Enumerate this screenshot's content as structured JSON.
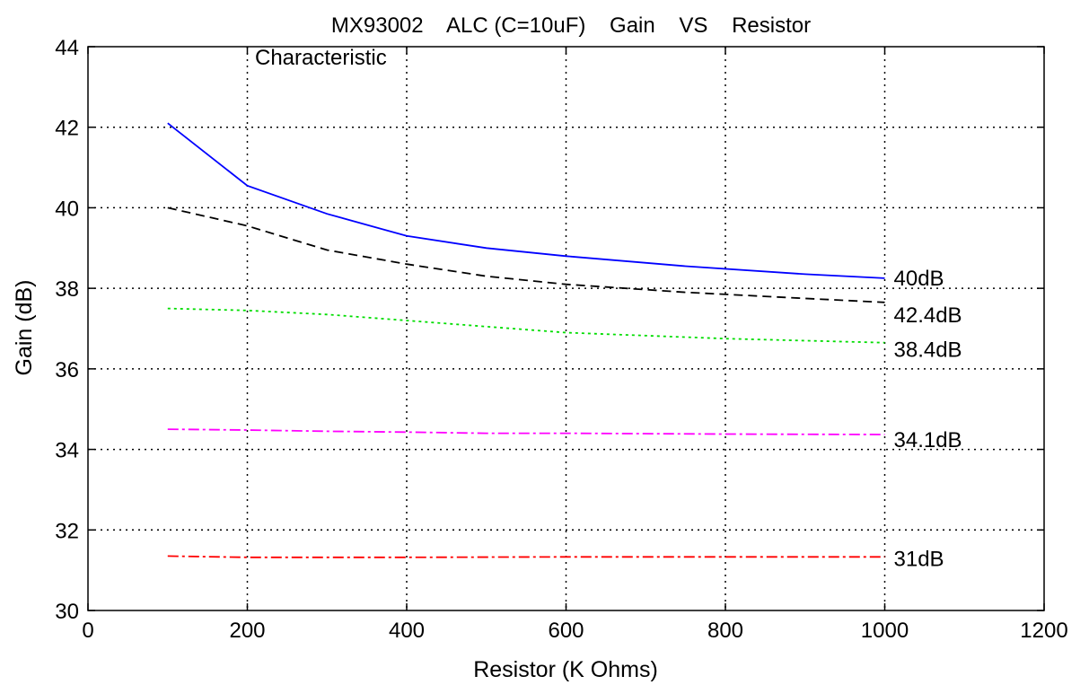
{
  "chart_data": {
    "type": "line",
    "title": "MX93002    ALC (C=10uF)    Gain    VS    Resistor",
    "subtitle": "Characteristic",
    "xlabel": "Resistor (K Ohms)",
    "ylabel": "Gain (dB)",
    "xlim": [
      0,
      1200
    ],
    "ylim": [
      30,
      44
    ],
    "xticks": [
      0,
      200,
      400,
      600,
      800,
      1000,
      1200
    ],
    "yticks": [
      30,
      32,
      34,
      36,
      38,
      40,
      42,
      44
    ],
    "grid": true,
    "series": [
      {
        "name": "40dB",
        "color": "#0000ff",
        "dash": "",
        "x": [
          100,
          200,
          300,
          400,
          500,
          600,
          750,
          900,
          1000
        ],
        "y": [
          42.1,
          40.55,
          39.85,
          39.3,
          39.0,
          38.8,
          38.55,
          38.35,
          38.25
        ]
      },
      {
        "name": "42.4dB",
        "color": "#000000",
        "dash": "10,6",
        "x": [
          100,
          200,
          300,
          400,
          500,
          600,
          750,
          900,
          1000
        ],
        "y": [
          40.0,
          39.55,
          38.95,
          38.6,
          38.3,
          38.1,
          37.9,
          37.75,
          37.65
        ]
      },
      {
        "name": "38.4dB",
        "color": "#00dd00",
        "dash": "3,4",
        "x": [
          100,
          200,
          300,
          400,
          500,
          600,
          800,
          1000
        ],
        "y": [
          37.5,
          37.45,
          37.35,
          37.2,
          37.05,
          36.9,
          36.75,
          36.65
        ]
      },
      {
        "name": "34.1dB",
        "color": "#ff00ff",
        "dash": "12,4,3,4",
        "x": [
          100,
          200,
          300,
          400,
          500,
          600,
          800,
          1000
        ],
        "y": [
          34.5,
          34.48,
          34.45,
          34.43,
          34.4,
          34.4,
          34.38,
          34.37
        ]
      },
      {
        "name": "31dB",
        "color": "#ff0000",
        "dash": "12,4,3,4",
        "x": [
          100,
          200,
          400,
          600,
          800,
          1000
        ],
        "y": [
          31.35,
          31.32,
          31.32,
          31.33,
          31.33,
          31.33
        ]
      }
    ]
  }
}
